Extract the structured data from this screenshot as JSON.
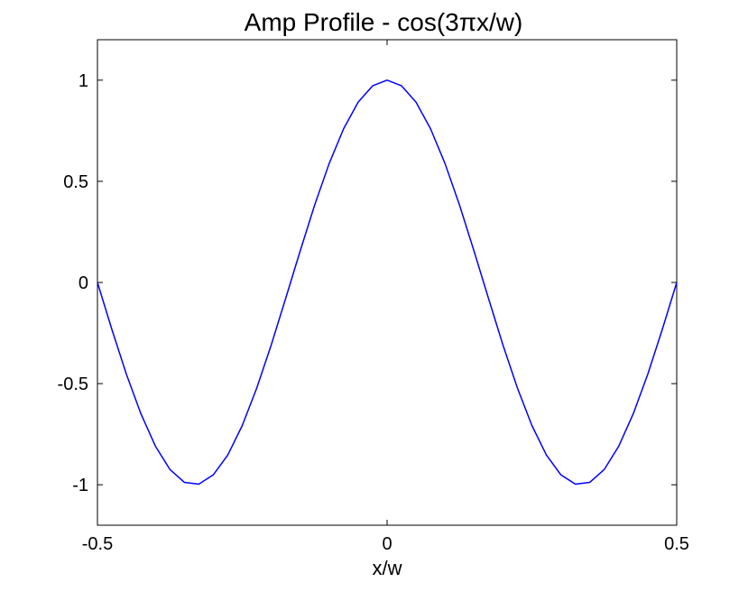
{
  "chart_data": {
    "type": "line",
    "title": "Amp Profile - cos(3πx/w)",
    "xlabel": "x/w",
    "ylabel": "",
    "xlim": [
      -0.5,
      0.5
    ],
    "ylim": [
      -1.2,
      1.2
    ],
    "xticks": [
      -0.5,
      0,
      0.5
    ],
    "xtick_labels": [
      "-0.5",
      "0",
      "0.5"
    ],
    "yticks": [
      -1,
      -0.5,
      0,
      0.5,
      1
    ],
    "ytick_labels": [
      "-1",
      "-0.5",
      "0",
      "0.5",
      "1"
    ],
    "grid": false,
    "legend": "none",
    "series": [
      {
        "color": "#0000ff",
        "x": [
          -0.5,
          -0.475,
          -0.45,
          -0.425,
          -0.4,
          -0.375,
          -0.35,
          -0.325,
          -0.3,
          -0.275,
          -0.25,
          -0.225,
          -0.2,
          -0.175,
          -0.15,
          -0.125,
          -0.1,
          -0.075,
          -0.05,
          -0.025,
          0,
          0.025,
          0.05,
          0.075,
          0.1,
          0.125,
          0.15,
          0.175,
          0.2,
          0.225,
          0.25,
          0.275,
          0.3,
          0.325,
          0.35,
          0.375,
          0.4,
          0.425,
          0.45,
          0.475,
          0.5
        ],
        "y": [
          0,
          -0.233,
          -0.454,
          -0.649,
          -0.809,
          -0.924,
          -0.988,
          -0.997,
          -0.951,
          -0.853,
          -0.707,
          -0.522,
          -0.309,
          -0.078,
          0.156,
          0.383,
          0.588,
          0.76,
          0.891,
          0.972,
          1,
          0.972,
          0.891,
          0.76,
          0.588,
          0.383,
          0.156,
          -0.078,
          -0.309,
          -0.522,
          -0.707,
          -0.853,
          -0.951,
          -0.997,
          -0.988,
          -0.924,
          -0.809,
          -0.649,
          -0.454,
          -0.233,
          0
        ]
      }
    ]
  }
}
